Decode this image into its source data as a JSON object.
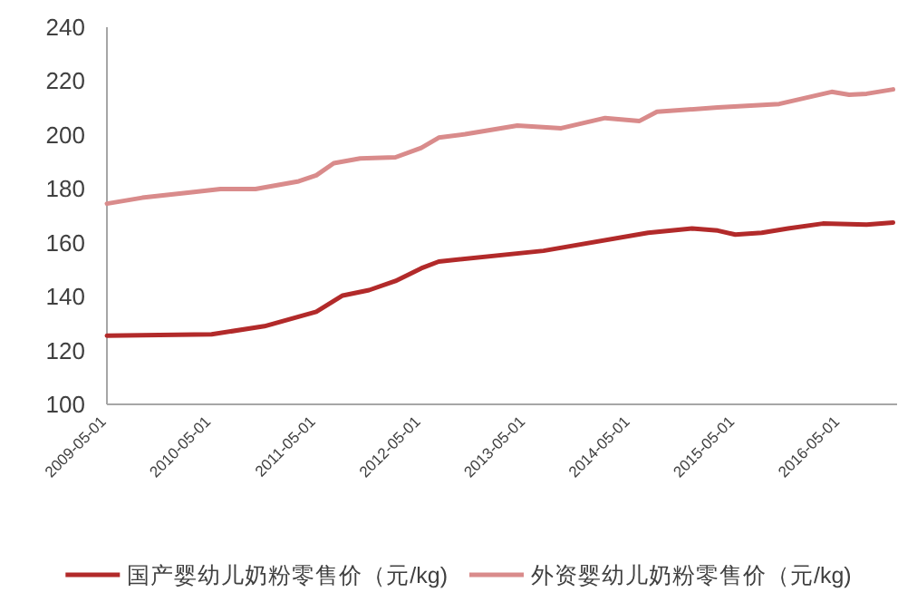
{
  "chart_data": {
    "type": "line",
    "legend": "bottom",
    "grid": false,
    "marker": "none",
    "line_style": "solid",
    "ylim": [
      100,
      240
    ],
    "yticks": [
      100,
      120,
      140,
      160,
      180,
      200,
      220,
      240
    ],
    "xlim": [
      "2009-05-01",
      "2016-11-15"
    ],
    "xticks": [
      "2009-05-01",
      "2010-05-01",
      "2011-05-01",
      "2012-05-01",
      "2013-05-01",
      "2014-05-01",
      "2015-05-01",
      "2016-05-01"
    ],
    "series": [
      {
        "name": "国产婴幼儿奶粉零售价（元/kg)",
        "color": "#b22a2a",
        "x": [
          "2009-05",
          "2010-05",
          "2010-11",
          "2011-05",
          "2011-08",
          "2011-11",
          "2012-02",
          "2012-05",
          "2012-07",
          "2013-07",
          "2014-07",
          "2014-12",
          "2015-03",
          "2015-05",
          "2015-08",
          "2015-11",
          "2016-03",
          "2016-08",
          "2016-11"
        ],
        "values": [
          125.5,
          126,
          129,
          134.4,
          140.4,
          142.4,
          145.8,
          150.5,
          153,
          157,
          163.7,
          165.3,
          164.5,
          163,
          163.7,
          165.3,
          167.1,
          166.7,
          167.5
        ]
      },
      {
        "name": "外资婴幼儿奶粉零售价（元/kg)",
        "color": "#d98b8b",
        "x": [
          "2009-05",
          "2009-09",
          "2010-03",
          "2010-06",
          "2010-10",
          "2011-03",
          "2011-05",
          "2011-07",
          "2011-10",
          "2012-02",
          "2012-05",
          "2012-07",
          "2012-10",
          "2013-04",
          "2013-09",
          "2014-02",
          "2014-06",
          "2014-08",
          "2015-03",
          "2015-10",
          "2016-04",
          "2016-06",
          "2016-08",
          "2016-11"
        ],
        "values": [
          174.5,
          176.7,
          178.8,
          179.9,
          179.9,
          182.8,
          185,
          189.5,
          191.3,
          191.7,
          195.2,
          199,
          200.3,
          203.5,
          202.5,
          206.3,
          205.2,
          208.6,
          210.2,
          211.5,
          216,
          214.9,
          215.3,
          216.9
        ]
      }
    ]
  }
}
